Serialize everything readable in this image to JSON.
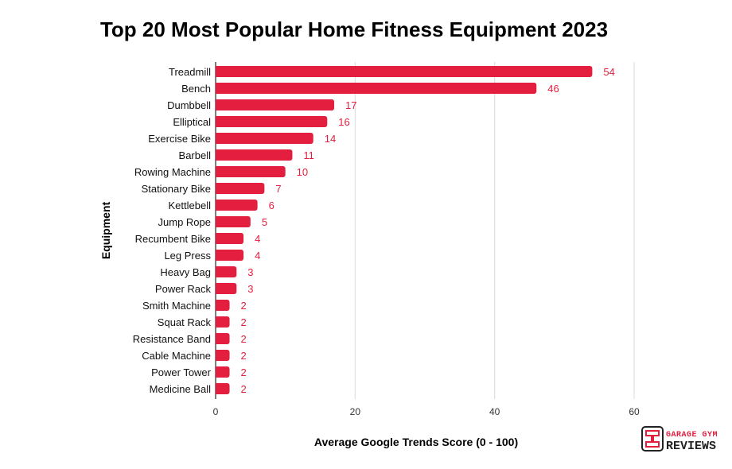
{
  "chart_data": {
    "type": "bar",
    "orientation": "horizontal",
    "title": "Top 20 Most Popular Home Fitness Equipment 2023",
    "xlabel": "Average Google Trends Score (0 - 100)",
    "ylabel": "Equipment",
    "xlim": [
      0,
      60
    ],
    "xticks": [
      0,
      20,
      40,
      60
    ],
    "grid": true,
    "bar_color": "#e41e3f",
    "categories": [
      "Treadmill",
      "Bench",
      "Dumbbell",
      "Elliptical",
      "Exercise Bike",
      "Barbell",
      "Rowing Machine",
      "Stationary Bike",
      "Kettlebell",
      "Jump Rope",
      "Recumbent Bike",
      "Leg Press",
      "Heavy Bag",
      "Power Rack",
      "Smith Machine",
      "Squat Rack",
      "Resistance Band",
      "Cable Machine",
      "Power Tower",
      "Medicine Ball"
    ],
    "values": [
      54,
      46,
      17,
      16,
      14,
      11,
      10,
      7,
      6,
      5,
      4,
      4,
      3,
      3,
      2,
      2,
      2,
      2,
      2,
      2
    ]
  },
  "logo": {
    "text_top": "GARAGE GYM",
    "text_bottom": "REVIEWS",
    "accent": "#e41e3f"
  }
}
